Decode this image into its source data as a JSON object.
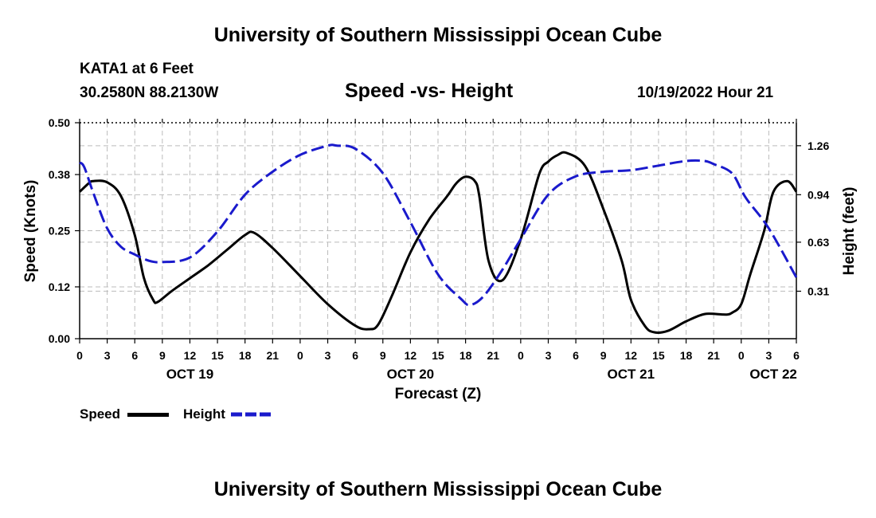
{
  "header": {
    "title": "University of Southern Mississippi Ocean Cube",
    "station": "KATA1 at 6 Feet",
    "coords": "30.2580N  88.2130W",
    "chart_title": "Speed -vs- Height",
    "datetime": "10/19/2022 Hour 21"
  },
  "footer": {
    "title": "University of Southern Mississippi Ocean Cube"
  },
  "legend": {
    "speed_label": "Speed",
    "height_label": "Height"
  },
  "colors": {
    "speed": "#000000",
    "height": "#1a1acc",
    "grid": "#bbbbbb"
  },
  "chart_data": {
    "type": "line",
    "title": "Speed -vs- Height",
    "xlabel": "Forecast (Z)",
    "ylabel_left": "Speed (Knots)",
    "ylabel_right": "Height (feet)",
    "x_unit": "hours from Oct 19 00Z",
    "xlim": [
      0,
      78
    ],
    "ylim_left": [
      0,
      0.5
    ],
    "ylim_right": [
      0,
      1.41
    ],
    "x_ticks": [
      0,
      3,
      6,
      9,
      12,
      15,
      18,
      21,
      24,
      27,
      30,
      33,
      36,
      39,
      42,
      45,
      48,
      51,
      54,
      57,
      60,
      63,
      66,
      69,
      72,
      75,
      78
    ],
    "x_tick_labels": [
      "0",
      "3",
      "6",
      "9",
      "12",
      "15",
      "18",
      "21",
      "0",
      "3",
      "6",
      "9",
      "12",
      "15",
      "18",
      "21",
      "0",
      "3",
      "6",
      "9",
      "12",
      "15",
      "18",
      "21",
      "0",
      "3",
      "6"
    ],
    "date_labels": [
      {
        "x": 12,
        "label": "OCT 19"
      },
      {
        "x": 36,
        "label": "OCT 20"
      },
      {
        "x": 60,
        "label": "OCT 21"
      },
      {
        "x": 75.5,
        "label": "OCT 22"
      }
    ],
    "y_left_ticks": [
      0.0,
      0.12,
      0.25,
      0.38,
      0.5
    ],
    "y_left_tick_labels": [
      "0.00",
      "0.12",
      "0.25",
      "0.38",
      "0.50"
    ],
    "y_right_ticks": [
      0.31,
      0.63,
      0.94,
      1.26
    ],
    "y_right_tick_labels": [
      "0.31",
      "0.63",
      "0.94",
      "1.26"
    ],
    "series": [
      {
        "name": "Speed",
        "axis": "left",
        "style": "solid",
        "x": [
          0,
          1,
          1.5,
          3,
          4.5,
          6,
          7,
          8,
          8.5,
          10,
          12,
          14,
          16,
          18,
          19,
          21,
          24,
          27,
          30,
          31.5,
          32.5,
          34,
          36,
          38,
          40,
          41,
          42,
          43,
          43.5,
          44.5,
          46,
          48,
          50,
          51,
          52,
          53,
          55,
          57,
          59,
          60,
          61.5,
          62.5,
          64,
          66,
          68,
          70,
          70.5,
          71,
          72,
          73,
          74.5,
          75.5,
          77,
          78
        ],
        "values": [
          0.34,
          0.36,
          0.365,
          0.362,
          0.33,
          0.24,
          0.14,
          0.09,
          0.085,
          0.11,
          0.14,
          0.17,
          0.205,
          0.24,
          0.245,
          0.21,
          0.145,
          0.08,
          0.03,
          0.022,
          0.033,
          0.1,
          0.2,
          0.275,
          0.33,
          0.36,
          0.375,
          0.365,
          0.33,
          0.18,
          0.135,
          0.23,
          0.38,
          0.41,
          0.425,
          0.43,
          0.4,
          0.3,
          0.18,
          0.09,
          0.03,
          0.015,
          0.018,
          0.04,
          0.057,
          0.056,
          0.056,
          0.06,
          0.08,
          0.15,
          0.25,
          0.34,
          0.365,
          0.34
        ]
      },
      {
        "name": "Height",
        "axis": "right",
        "style": "dashed",
        "x": [
          0,
          0.5,
          1.5,
          3,
          4.5,
          6,
          7.5,
          9,
          12,
          15,
          18,
          21,
          24,
          27,
          28,
          30,
          33,
          36,
          39,
          41.5,
          42.5,
          44,
          46,
          48,
          51,
          54,
          57,
          60,
          63,
          66,
          68,
          69,
          71,
          72.5,
          75,
          78
        ],
        "values": [
          1.15,
          1.12,
          0.95,
          0.72,
          0.6,
          0.55,
          0.51,
          0.5,
          0.53,
          0.7,
          0.94,
          1.09,
          1.2,
          1.26,
          1.26,
          1.24,
          1.08,
          0.76,
          0.42,
          0.26,
          0.22,
          0.28,
          0.45,
          0.65,
          0.94,
          1.06,
          1.09,
          1.1,
          1.13,
          1.16,
          1.16,
          1.14,
          1.08,
          0.92,
          0.72,
          0.4
        ]
      }
    ],
    "grid": true,
    "legend_position": "bottom-left"
  }
}
